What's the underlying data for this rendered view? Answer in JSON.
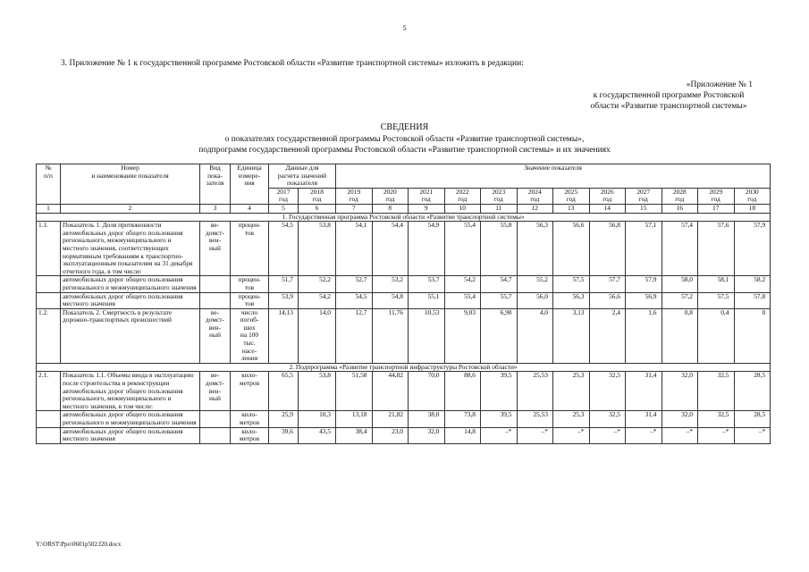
{
  "page_number": "5",
  "intro": "3. Приложение № 1 к государственной программе Ростовской области «Развитие транспортной системы» изложить в редакции:",
  "appendix": [
    "«Приложение № 1",
    "к государственной программе Ростовской",
    "области «Развитие транспортной системы»"
  ],
  "title": "СВЕДЕНИЯ",
  "subtitle": [
    "о показателях государственной программы Ростовской области «Развитие транспортной системы»,",
    "подпрограмм государственной программы Ростовской области «Развитие транспортной системы» и их значениях"
  ],
  "table": {
    "header": {
      "num": "№\nп/п",
      "name": "Номер\nи наименование показателя",
      "kind": "Вид\nпока-\nзателя",
      "unit": "Единица\nизмере-\nния",
      "base_group": "Данные для\nрасчета значений\nпоказателя",
      "values_group": "Значение показателя"
    },
    "years": [
      "2017\nгод",
      "2018\nгод",
      "2019\nгод",
      "2020\nгод",
      "2021\nгод",
      "2022\nгод",
      "2023\nгод",
      "2024\nгод",
      "2025\nгод",
      "2026\nгод",
      "2027\nгод",
      "2028\nгод",
      "2029\nгод",
      "2030\nгод"
    ],
    "column_numbers": [
      "1",
      "2",
      "3",
      "4",
      "5",
      "6",
      "7",
      "8",
      "9",
      "10",
      "11",
      "12",
      "13",
      "14",
      "15",
      "16",
      "17",
      "18"
    ],
    "rows": [
      {
        "section": "1. Государственная программа Ростовской области «Развитие транспортной системы»"
      },
      {
        "num": "1.1.",
        "name": "Показатель 1. Доля протяженности автомобильных дорог общего пользования регионального, межмуниципального и местного значения, соответствующих нормативным требованиям к транспортно-эксплуатационным показателям на 31 декабря отчетного года, в том числе:",
        "kind": "ве-\nдомст-\nвен-\nный",
        "unit": "процен-\nтов",
        "values": [
          "54,5",
          "53,8",
          "54,1",
          "54,4",
          "54,9",
          "55,4",
          "55,8",
          "56,3",
          "56,6",
          "56,8",
          "57,1",
          "57,4",
          "57,6",
          "57,9"
        ]
      },
      {
        "name": "автомобильных дорог общего пользования регионального и межмуниципального значения",
        "unit": "процен-\nтов",
        "values": [
          "51,7",
          "52,2",
          "52,7",
          "53,2",
          "53,7",
          "54,2",
          "54,7",
          "55,2",
          "57,5",
          "57,7",
          "57,9",
          "58,0",
          "58,1",
          "58,2"
        ]
      },
      {
        "name": "автомобильных дорог общего пользования местного значения",
        "unit": "процен-\nтов",
        "values": [
          "53,9",
          "54,2",
          "54,5",
          "54,8",
          "55,1",
          "55,4",
          "55,7",
          "56,0",
          "56,3",
          "56,6",
          "56,9",
          "57,2",
          "57,5",
          "57,8"
        ]
      },
      {
        "num": "1.2.",
        "name": "Показатель 2. Смертность в результате дорожно-транспортных происшествий",
        "kind": "ве-\nдомст-\nвен-\nный",
        "unit": "число\nпогиб-\nших\nна 100\nтыс.\nнасе-\nления",
        "values": [
          "14,13",
          "14,0",
          "12,7",
          "11,76",
          "10,53",
          "9,03",
          "6,90",
          "4,0",
          "3,13",
          "2,4",
          "1,6",
          "0,8",
          "0,4",
          "0"
        ]
      },
      {
        "section": "2. Подпрограмма «Развитие транспортной инфраструктуры Ростовской области»"
      },
      {
        "num": "2.1.",
        "name": "Показатель 1.1. Объемы ввода в эксплуатацию после строительства и реконструкции автомобильных дорог общего пользования регионального, межмуниципального и местного значения, в том числе:",
        "kind": "ве-\nдомст-\nвен-\nный",
        "unit": "кило-\nметров",
        "values": [
          "65,5",
          "53,8",
          "51,58",
          "44,82",
          "70,0",
          "88,6",
          "39,5",
          "25,53",
          "25,3",
          "32,5",
          "31,4",
          "32,0",
          "32,5",
          "28,5"
        ]
      },
      {
        "name": "автомобильных дорог общего пользования регионального и межмуниципального значения",
        "unit": "кило-\nметров",
        "values": [
          "25,9",
          "10,3",
          "13,18",
          "21,82",
          "38,0",
          "73,8",
          "39,5",
          "25,53",
          "25,3",
          "32,5",
          "31,4",
          "32,0",
          "32,5",
          "28,5"
        ]
      },
      {
        "name": "автомобильных дорог общего пользования местного значения",
        "unit": "кило-\nметров",
        "values": [
          "39,6",
          "43,5",
          "38,4",
          "23,0",
          "32,0",
          "14,8",
          "–*",
          "–*",
          "–*",
          "–*",
          "–*",
          "–*",
          "–*",
          "–*"
        ]
      }
    ]
  },
  "footer": "Y:\\ORST\\Ppo\\0601p502.f20.docx"
}
